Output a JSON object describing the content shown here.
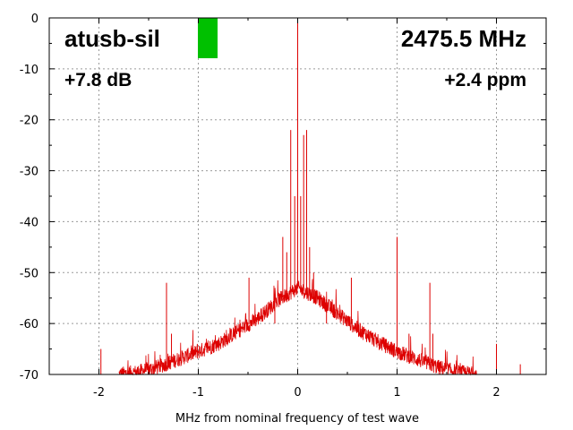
{
  "chart_data": {
    "type": "line",
    "xlabel": "MHz from nominal frequency of test wave",
    "ylabel": "",
    "xlim": [
      -2.5,
      2.5
    ],
    "ylim": [
      -70,
      0
    ],
    "x_ticks": [
      -2,
      -1,
      0,
      1,
      2
    ],
    "x_tick_labels": [
      "-2",
      "-1",
      "0",
      "1",
      "2"
    ],
    "y_ticks": [
      0,
      -10,
      -20,
      -30,
      -40,
      -50,
      -60,
      -70
    ],
    "y_tick_labels": [
      "0",
      "-10",
      "-20",
      "-30",
      "-40",
      "-50",
      "-60",
      "-70"
    ],
    "grid": true,
    "series": [
      {
        "color": "#dd0000",
        "noise_floor_points": [
          [
            -1.8,
            -70
          ],
          [
            -1.6,
            -69.5
          ],
          [
            -1.4,
            -68.5
          ],
          [
            -1.2,
            -67
          ],
          [
            -1.0,
            -65.5
          ],
          [
            -0.8,
            -64
          ],
          [
            -0.6,
            -61.5
          ],
          [
            -0.4,
            -59
          ],
          [
            -0.2,
            -55.5
          ],
          [
            0.0,
            -53
          ],
          [
            0.2,
            -55
          ],
          [
            0.4,
            -58
          ],
          [
            0.6,
            -61
          ],
          [
            0.8,
            -63.5
          ],
          [
            1.0,
            -65.5
          ],
          [
            1.2,
            -67
          ],
          [
            1.4,
            -68.5
          ],
          [
            1.6,
            -69.5
          ],
          [
            1.8,
            -70
          ]
        ],
        "spurs": [
          [
            -1.98,
            -65
          ],
          [
            -1.32,
            -52
          ],
          [
            -1.27,
            -62
          ],
          [
            -1.01,
            -64
          ],
          [
            -0.49,
            -51
          ],
          [
            -0.23,
            -60
          ],
          [
            -0.15,
            -43
          ],
          [
            -0.11,
            -46
          ],
          [
            -0.07,
            -22
          ],
          [
            -0.03,
            -35
          ],
          [
            0.0,
            0
          ],
          [
            0.03,
            -35
          ],
          [
            0.06,
            -23
          ],
          [
            0.09,
            -22
          ],
          [
            0.12,
            -45
          ],
          [
            0.16,
            -50
          ],
          [
            0.29,
            -60
          ],
          [
            0.54,
            -51
          ],
          [
            1.0,
            -43
          ],
          [
            1.12,
            -62
          ],
          [
            1.33,
            -52
          ],
          [
            1.36,
            -62
          ],
          [
            2.0,
            -64
          ],
          [
            2.24,
            -68
          ]
        ]
      }
    ]
  },
  "annotations": {
    "device_name": "atusb-sil",
    "frequency": "2475.5 MHz",
    "power": "+7.8 dB",
    "ppm": "+2.4 ppm",
    "indicator_color": "#00c000"
  }
}
